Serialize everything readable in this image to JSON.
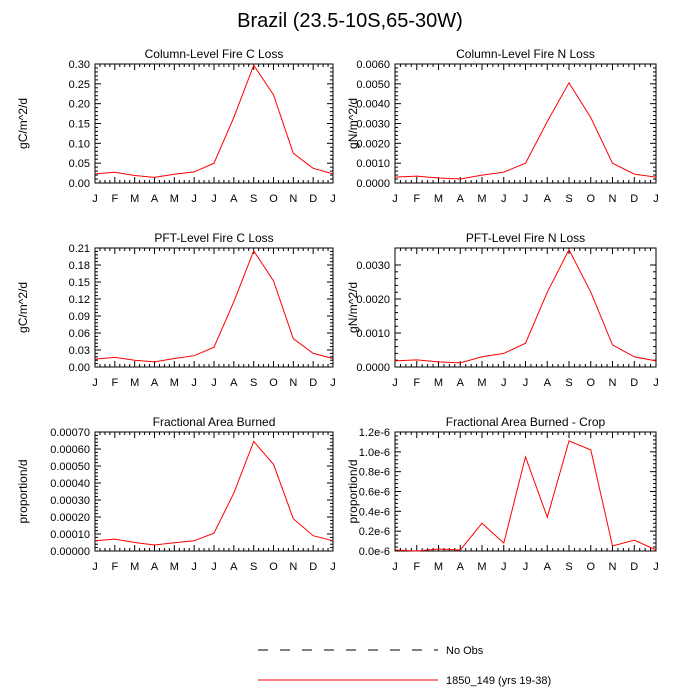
{
  "title": "Brazil (23.5-10S,65-30W)",
  "legend": {
    "entries": [
      {
        "label": "No Obs",
        "style": "dashed",
        "color": "#000000"
      },
      {
        "label": "1850_149 (yrs 19-38)",
        "style": "solid",
        "color": "#ff0000"
      }
    ]
  },
  "chart_data": [
    {
      "type": "line",
      "title": "Column-Level Fire C Loss",
      "ylabel": "gC/m^2/d",
      "xlabel": "",
      "categories": [
        "J",
        "F",
        "M",
        "A",
        "M",
        "J",
        "J",
        "A",
        "S",
        "O",
        "N",
        "D",
        "J"
      ],
      "ylim": [
        0,
        0.3
      ],
      "yticks": [
        "0.00",
        "0.05",
        "0.10",
        "0.15",
        "0.20",
        "0.25",
        "0.30"
      ],
      "series": [
        {
          "name": "1850_149 (yrs 19-38)",
          "values": [
            0.023,
            0.027,
            0.019,
            0.014,
            0.022,
            0.028,
            0.05,
            0.165,
            0.297,
            0.222,
            0.075,
            0.037,
            0.023
          ]
        }
      ]
    },
    {
      "type": "line",
      "title": "Column-Level Fire N Loss",
      "ylabel": "gN/m^2/d",
      "xlabel": "",
      "categories": [
        "J",
        "F",
        "M",
        "A",
        "M",
        "J",
        "J",
        "A",
        "S",
        "O",
        "N",
        "D",
        "J"
      ],
      "ylim": [
        0,
        0.006
      ],
      "yticks": [
        "0.0000",
        "0.0010",
        "0.0020",
        "0.0030",
        "0.0040",
        "0.0050",
        "0.0060"
      ],
      "series": [
        {
          "name": "1850_149 (yrs 19-38)",
          "values": [
            0.0003,
            0.00035,
            0.00025,
            0.0002,
            0.0004,
            0.00055,
            0.001,
            0.0031,
            0.00505,
            0.0033,
            0.001,
            0.00045,
            0.0003
          ]
        }
      ]
    },
    {
      "type": "line",
      "title": "PFT-Level Fire C Loss",
      "ylabel": "gC/m^2/d",
      "xlabel": "",
      "categories": [
        "J",
        "F",
        "M",
        "A",
        "M",
        "J",
        "J",
        "A",
        "S",
        "O",
        "N",
        "D",
        "J"
      ],
      "ylim": [
        0,
        0.21
      ],
      "yticks": [
        "0.00",
        "0.03",
        "0.06",
        "0.09",
        "0.12",
        "0.15",
        "0.18",
        "0.21"
      ],
      "series": [
        {
          "name": "1850_149 (yrs 19-38)",
          "values": [
            0.014,
            0.017,
            0.012,
            0.009,
            0.015,
            0.02,
            0.035,
            0.115,
            0.205,
            0.152,
            0.05,
            0.024,
            0.015
          ]
        }
      ]
    },
    {
      "type": "line",
      "title": "PFT-Level Fire N Loss",
      "ylabel": "gN/m^2/d",
      "xlabel": "",
      "categories": [
        "J",
        "F",
        "M",
        "A",
        "M",
        "J",
        "J",
        "A",
        "S",
        "O",
        "N",
        "D",
        "J"
      ],
      "ylim": [
        0,
        0.0035
      ],
      "yticks": [
        "0.0000",
        "0.0010",
        "0.0020",
        "0.0030"
      ],
      "series": [
        {
          "name": "1850_149 (yrs 19-38)",
          "values": [
            0.00018,
            0.00021,
            0.00015,
            0.00012,
            0.0003,
            0.0004,
            0.0007,
            0.0022,
            0.00345,
            0.0022,
            0.00065,
            0.0003,
            0.00018
          ]
        }
      ]
    },
    {
      "type": "line",
      "title": "Fractional Area Burned",
      "ylabel": "proportion/d",
      "xlabel": "",
      "categories": [
        "J",
        "F",
        "M",
        "A",
        "M",
        "J",
        "J",
        "A",
        "S",
        "O",
        "N",
        "D",
        "J"
      ],
      "ylim": [
        0,
        0.0007
      ],
      "yticks": [
        "0.00000",
        "0.00010",
        "0.00020",
        "0.00030",
        "0.00040",
        "0.00050",
        "0.00060",
        "0.00070"
      ],
      "series": [
        {
          "name": "1850_149 (yrs 19-38)",
          "values": [
            6e-05,
            7e-05,
            5e-05,
            3.5e-05,
            4.8e-05,
            6e-05,
            0.000105,
            0.00034,
            0.000645,
            0.00051,
            0.00019,
            9e-05,
            6e-05
          ]
        }
      ]
    },
    {
      "type": "line",
      "title": "Fractional Area Burned - Crop",
      "ylabel": "proportion/d",
      "xlabel": "",
      "categories": [
        "J",
        "F",
        "M",
        "A",
        "M",
        "J",
        "J",
        "A",
        "S",
        "O",
        "N",
        "D",
        "J"
      ],
      "ylim": [
        0,
        1.2e-06
      ],
      "yticks": [
        "0.0e-6",
        "0.2e-6",
        "0.4e-6",
        "0.6e-6",
        "0.8e-6",
        "1.0e-6",
        "1.2e-6"
      ],
      "series": [
        {
          "name": "1850_149 (yrs 19-38)",
          "values": [
            1e-08,
            0.0,
            2e-08,
            1e-08,
            2.8e-07,
            8e-08,
            9.5e-07,
            3.4e-07,
            1.11e-06,
            1.02e-06,
            5e-08,
            1.1e-07,
            1e-08
          ]
        }
      ]
    }
  ]
}
